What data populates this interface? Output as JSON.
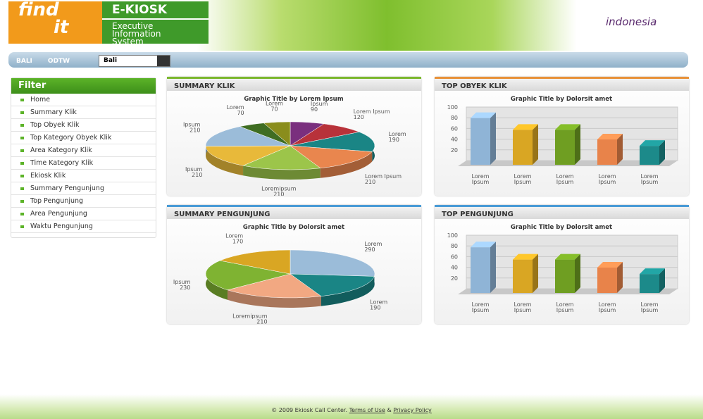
{
  "header": {
    "logo": [
      "find",
      "it"
    ],
    "kiosk_title": "E-KIOSK",
    "kiosk_subtitle": [
      "Executive",
      "Information",
      "System"
    ],
    "brand": "indonesia"
  },
  "nav": {
    "items": [
      "BALI",
      "ODTW"
    ],
    "select": "Bali"
  },
  "filter": {
    "title": "Filter",
    "items": [
      "Home",
      "Summary Klik",
      "Top Obyek Klik",
      "Top Kategory Obyek Klik",
      "Area Kategory Klik",
      "Time Kategory Klik",
      "Ekiosk Klik",
      "Summary Pengunjung",
      "Top Pengunjung",
      "Area Pengunjung",
      "Waktu Pengunjung"
    ]
  },
  "panels": [
    {
      "title": "SUMMARY KLIK",
      "border": "#7cb82f",
      "chart": {
        "type": "pie",
        "title": "Graphic Title by Lorem Ipsum",
        "slices": [
          {
            "name": "Ipsum",
            "value": 90,
            "color": "#7a2f7e"
          },
          {
            "name": "Lorem Ipsum",
            "value": 120,
            "color": "#b8323a"
          },
          {
            "name": "Lorem",
            "value": 190,
            "color": "#1a8585"
          },
          {
            "name": "Lorem Ipsum",
            "value": 210,
            "color": "#e9864e"
          },
          {
            "name": "Loremipsum",
            "value": 210,
            "color": "#9cc54a"
          },
          {
            "name": "Ipsum",
            "value": 210,
            "color": "#e8b93a"
          },
          {
            "name": "Ipsum",
            "value": 210,
            "color": "#9bbcd9"
          },
          {
            "name": "Lorem",
            "value": 70,
            "color": "#3f6d22"
          },
          {
            "name": "Lorem",
            "value": 70,
            "color": "#8a8d1c"
          }
        ]
      }
    },
    {
      "title": "TOP OBYEK KLIK",
      "border": "#e8923a",
      "chart": {
        "type": "bar",
        "title": "Graphic Title by Dolorsit amet",
        "categories": [
          "Lorem Ipsum",
          "Lorem Ipsum",
          "Lorem Ipsum",
          "Lorem Ipsum",
          "Lorem Ipsum"
        ],
        "values": [
          90,
          68,
          68,
          50,
          38
        ],
        "colors": [
          "#8fb4d6",
          "#d9a623",
          "#6f9e22",
          "#e8834a",
          "#1c8a8a"
        ],
        "ylim": [
          0,
          100
        ],
        "yticks": [
          20,
          40,
          60,
          80,
          100
        ],
        "grid": true
      }
    },
    {
      "title": "SUMMARY PENGUNJUNG",
      "border": "#4a9bd6",
      "chart": {
        "type": "pie",
        "title": "Graphic Title by Dolorsit amet",
        "slices": [
          {
            "name": "Lorem",
            "value": 290,
            "color": "#9bbcd9"
          },
          {
            "name": "Lorem",
            "value": 190,
            "color": "#1a8585"
          },
          {
            "name": "Loremipsum",
            "value": 210,
            "color": "#f2a882"
          },
          {
            "name": "Ipsum",
            "value": 230,
            "color": "#7fb332"
          },
          {
            "name": "Lorem",
            "value": 170,
            "color": "#d9a623"
          }
        ]
      }
    },
    {
      "title": "TOP PENGUNJUNG",
      "border": "#4a9bd6",
      "chart": {
        "type": "bar",
        "title": "Graphic Title by Dolorsit amet",
        "categories": [
          "Lorem Ipsum",
          "Lorem Ipsum",
          "Lorem Ipsum",
          "Lorem Ipsum",
          "Lorem Ipsum"
        ],
        "values": [
          88,
          65,
          65,
          50,
          38
        ],
        "colors": [
          "#8fb4d6",
          "#d9a623",
          "#6f9e22",
          "#e8834a",
          "#1c8a8a"
        ],
        "ylim": [
          0,
          100
        ],
        "yticks": [
          20,
          40,
          60,
          80,
          100
        ],
        "grid": true
      }
    }
  ],
  "footer": {
    "copyright": "© 2009 Ekiosk Call Center.",
    "links": [
      "Terms of Use",
      "Privacy Policy"
    ],
    "separator": "&"
  }
}
